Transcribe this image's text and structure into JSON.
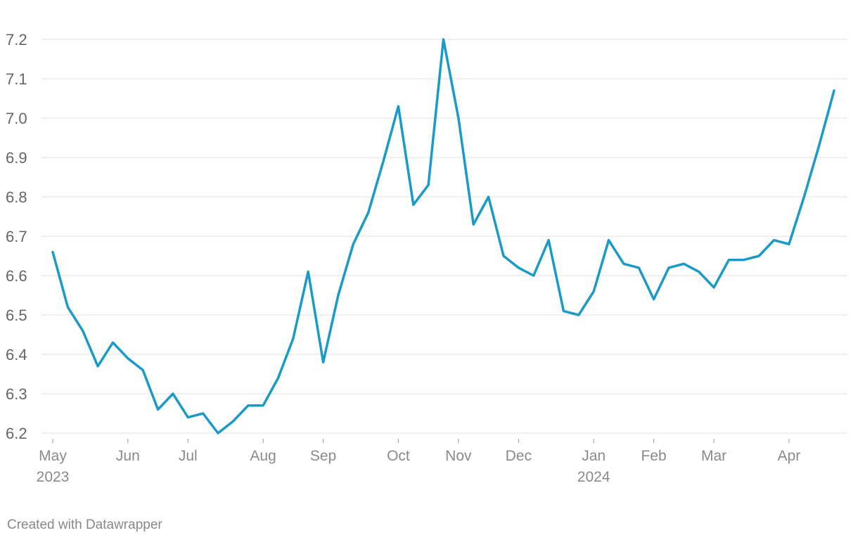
{
  "chart_data": {
    "type": "line",
    "categories": [
      "May 2023",
      null,
      null,
      null,
      null,
      "Jun",
      null,
      null,
      null,
      "Jul",
      null,
      null,
      null,
      null,
      "Aug",
      null,
      null,
      null,
      "Sep",
      null,
      null,
      null,
      null,
      "Oct",
      null,
      null,
      null,
      "Nov",
      null,
      null,
      null,
      "Dec",
      null,
      null,
      null,
      null,
      "Jan 2024",
      null,
      null,
      null,
      "Feb",
      null,
      null,
      null,
      "Mar",
      null,
      null,
      null,
      null,
      "Apr",
      null,
      null,
      null
    ],
    "series": [
      {
        "color": "#1a9ac9",
        "values": [
          6.66,
          6.52,
          6.46,
          6.37,
          6.43,
          6.39,
          6.36,
          6.26,
          6.3,
          6.24,
          6.25,
          6.2,
          6.23,
          6.27,
          6.27,
          6.34,
          6.44,
          6.61,
          6.38,
          6.55,
          6.68,
          6.76,
          6.89,
          7.03,
          6.78,
          6.83,
          7.2,
          7.0,
          6.73,
          6.8,
          6.65,
          6.62,
          6.6,
          6.69,
          6.51,
          6.5,
          6.56,
          6.69,
          6.63,
          6.62,
          6.54,
          6.62,
          6.63,
          6.61,
          6.57,
          6.64,
          6.64,
          6.65,
          6.69,
          6.68,
          6.8,
          6.93,
          7.07
        ]
      }
    ],
    "ylim": [
      6.2,
      7.2
    ],
    "yticks": [
      {
        "value": 6.2,
        "label": "6.2"
      },
      {
        "value": 6.3,
        "label": "6.3"
      },
      {
        "value": 6.4,
        "label": "6.4"
      },
      {
        "value": 6.5,
        "label": "6.5"
      },
      {
        "value": 6.6,
        "label": "6.6"
      },
      {
        "value": 6.7,
        "label": "6.7"
      },
      {
        "value": 6.8,
        "label": "6.8"
      },
      {
        "value": 6.9,
        "label": "6.9"
      },
      {
        "value": 7.0,
        "label": "7.0"
      },
      {
        "value": 7.1,
        "label": "7.1"
      },
      {
        "value": 7.2,
        "label": "7.2"
      }
    ],
    "grid": true,
    "footer": "Created with Datawrapper"
  }
}
